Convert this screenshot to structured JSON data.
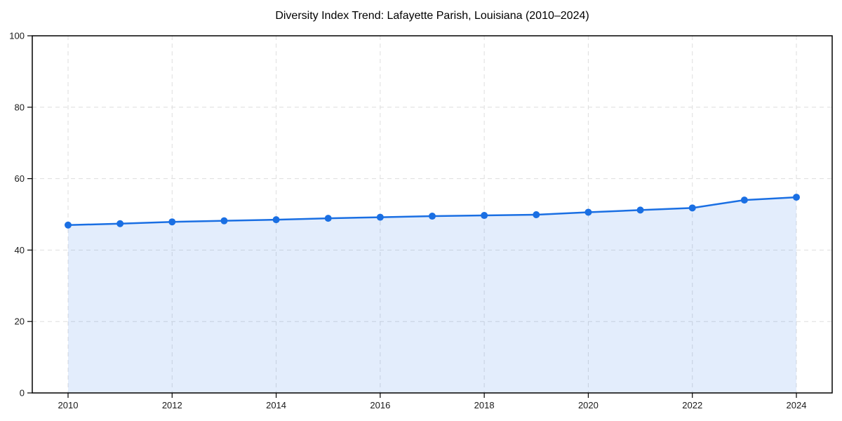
{
  "page": {
    "background": "#ffffff"
  },
  "chart_data": {
    "type": "area",
    "title": "Diversity Index Trend: Lafayette Parish, Louisiana (2010–2024)",
    "series_name": "Diversity Index",
    "x": [
      2010,
      2011,
      2012,
      2013,
      2014,
      2015,
      2016,
      2017,
      2018,
      2019,
      2020,
      2021,
      2022,
      2023,
      2024
    ],
    "values": [
      47.0,
      47.4,
      47.9,
      48.2,
      48.5,
      48.9,
      49.2,
      49.5,
      49.7,
      49.9,
      50.6,
      51.2,
      51.8,
      54.0,
      54.8
    ],
    "xlabel": "",
    "ylabel": "",
    "ylim": [
      0,
      100
    ],
    "yticks": [
      0,
      20,
      40,
      60,
      80,
      100
    ],
    "xticks": [
      2010,
      2012,
      2014,
      2016,
      2018,
      2020,
      2022,
      2024
    ],
    "grid": true,
    "grid_style": "dashed",
    "legend_position": "none",
    "colors": {
      "line": "#1a6fe3",
      "fill": "rgba(26,111,227,0.12)",
      "marker": "#1a6fe3",
      "grid": "#dedede",
      "frame": "#000000",
      "tick_label": "#1a1a1a",
      "title": "#000000"
    },
    "marker_radius": 5,
    "line_width": 2.5
  }
}
